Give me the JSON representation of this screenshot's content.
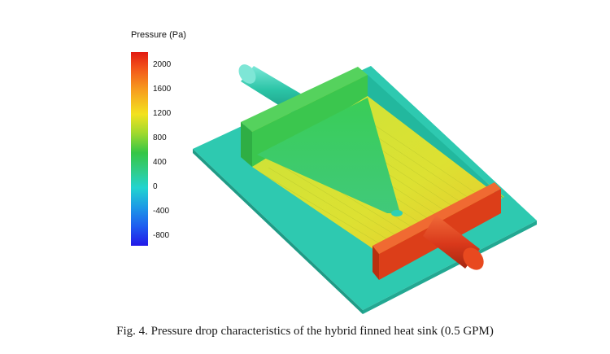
{
  "legend": {
    "title": "Pressure (Pa)",
    "ticks": [
      "2000",
      "1600",
      "1200",
      "800",
      "400",
      "0",
      "-400",
      "-800"
    ]
  },
  "figure": {
    "caption": "Fig. 4.   Pressure drop characteristics of the hybrid finned heat sink (0.5 GPM)"
  },
  "colors": {
    "base_plate": "#2ec9b0",
    "inlet_manifold": "#3ccf4c",
    "fin_field": "#d2e338",
    "outlet_manifold": "#e4461c",
    "colorbar_max": "#e21b12",
    "colorbar_min": "#2318e8"
  }
}
